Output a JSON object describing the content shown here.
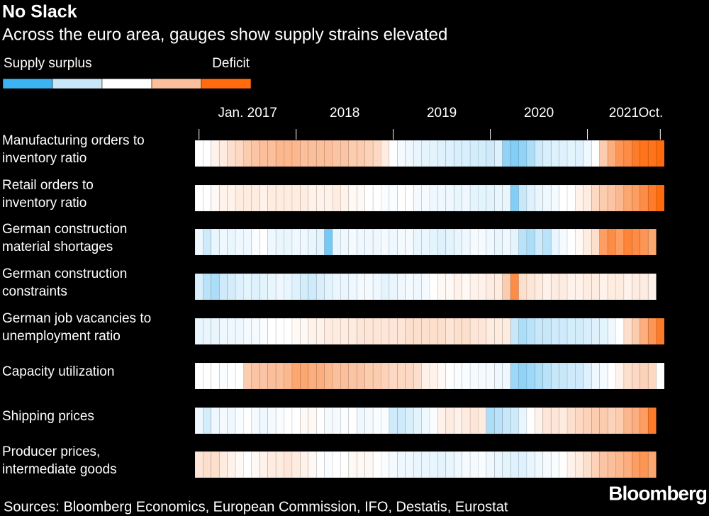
{
  "chart_data": {
    "type": "heatmap",
    "title": "No Slack",
    "subtitle": "Across the euro area, gauges show supply strains elevated",
    "legend_labels": [
      "Supply surplus",
      "Deficit"
    ],
    "colors": [
      "#3db4f2",
      "#c8e8fa",
      "#ffffff",
      "#fbbf9b",
      "#ff6b0d"
    ],
    "zlim": [
      -2,
      2
    ],
    "xticks": [
      {
        "value": 0,
        "label": "Jan. 2017"
      },
      {
        "value": 12,
        "label": "2018"
      },
      {
        "value": 24,
        "label": "2019"
      },
      {
        "value": 36,
        "label": "2020"
      },
      {
        "value": 48,
        "label": "2021"
      },
      {
        "value": 57,
        "label": "Oct."
      }
    ],
    "series": [
      {
        "name": "Manufacturing orders to\ninventory ratio",
        "values": [
          0,
          0,
          0.2,
          0.3,
          0.5,
          0.6,
          0.8,
          0.9,
          1,
          1,
          1.1,
          1.1,
          1.1,
          1,
          1,
          1,
          1,
          0.9,
          0.9,
          0.8,
          0.8,
          0.7,
          0.6,
          0.3,
          0,
          -0.2,
          -0.3,
          -0.4,
          -0.5,
          -0.5,
          -0.6,
          -0.6,
          -0.7,
          -0.7,
          -0.8,
          -0.8,
          -0.9,
          -0.6,
          -1.4,
          -1.5,
          -1.4,
          -1.2,
          -0.9,
          -0.7,
          -0.6,
          -0.6,
          -0.5,
          -0.6,
          -0.3,
          0,
          0.8,
          1.2,
          1.5,
          1.6,
          1.8,
          1.9,
          1.9,
          2
        ]
      },
      {
        "name": "Retail orders to\ninventory ratio",
        "values": [
          0,
          0,
          0.1,
          0.2,
          0.2,
          0.3,
          0.3,
          0.3,
          0.2,
          0.3,
          0.3,
          0.3,
          0.3,
          0.3,
          0.2,
          0.2,
          0.2,
          0.3,
          0.2,
          0.1,
          0.1,
          0,
          0,
          -0.1,
          -0.1,
          0,
          0,
          -0.2,
          -0.2,
          -0.3,
          -0.3,
          -0.3,
          -0.4,
          -0.3,
          -0.5,
          -0.5,
          -0.5,
          -0.4,
          -0.4,
          -1.5,
          -1,
          -0.6,
          -0.4,
          -0.3,
          -0.2,
          0,
          0,
          0.2,
          0.3,
          0.6,
          0.8,
          0.9,
          1.1,
          1.3,
          1.4,
          1.6,
          1.8,
          2
        ]
      },
      {
        "name": "German construction\nmaterial shortages",
        "values": [
          -0.3,
          -0.9,
          -0.4,
          -0.3,
          -0.4,
          -0.3,
          -0.3,
          -0.1,
          0,
          -0.3,
          -0.4,
          -0.4,
          -0.3,
          -0.3,
          -0.4,
          -0.5,
          -1.6,
          -0.4,
          -0.3,
          -0.2,
          -0.3,
          -0.3,
          -0.3,
          -0.2,
          -0.3,
          -0.2,
          -0.2,
          -0.4,
          -0.4,
          -0.5,
          -0.6,
          -0.5,
          -0.4,
          -0.3,
          -0.2,
          -0.2,
          -0.3,
          -0.4,
          -0.3,
          -0.5,
          -1.1,
          -1.2,
          -0.9,
          -1.1,
          -0.4,
          -0.2,
          0,
          0.1,
          0.3,
          0.5,
          1.4,
          1.6,
          1.4,
          1.7,
          1.6,
          1.5,
          1.3
        ]
      },
      {
        "name": "German construction\nconstraints",
        "values": [
          -0.7,
          -1.1,
          -1.2,
          -0.9,
          -0.8,
          -0.6,
          -0.5,
          -0.6,
          -0.5,
          -0.4,
          -0.3,
          -0.4,
          -0.6,
          -0.8,
          -0.9,
          -0.7,
          -0.5,
          -0.4,
          -0.4,
          -0.3,
          -0.2,
          -0.2,
          -0.3,
          -0.5,
          -0.4,
          -0.3,
          -0.2,
          -0.3,
          -0.2,
          0,
          0.1,
          0.1,
          0.2,
          0.1,
          0.2,
          0.2,
          0.3,
          0.3,
          0.8,
          1.6,
          0.5,
          0.4,
          0.3,
          0.2,
          0.3,
          0.3,
          0.2,
          0.2,
          0.3,
          0.3,
          0.2,
          0.3,
          0.3,
          0.2,
          0.3,
          0.3,
          0.2
        ]
      },
      {
        "name": "German job vacancies to\nunemployment ratio",
        "values": [
          -0.4,
          -0.4,
          -0.4,
          -0.3,
          -0.3,
          -0.3,
          -0.2,
          -0.2,
          -0.1,
          0,
          0,
          0,
          0.1,
          0.1,
          0.2,
          0.2,
          0.3,
          0.3,
          0.3,
          0.3,
          0.4,
          0.4,
          0.4,
          0.4,
          0.4,
          0.4,
          0.5,
          0.5,
          0.5,
          0.5,
          0.5,
          0.4,
          0.5,
          0.5,
          0.4,
          0.4,
          0.3,
          0.3,
          0.3,
          -1,
          -1.2,
          -1.1,
          -1,
          -1,
          -0.9,
          -0.9,
          -0.8,
          -0.8,
          -0.7,
          -0.6,
          -0.5,
          -0.3,
          0,
          0.5,
          0.8,
          1.2,
          1.5,
          1.8
        ]
      },
      {
        "name": "Capacity utilization",
        "values": [
          0,
          0,
          0,
          -0.1,
          0,
          0,
          0.8,
          0.9,
          0.9,
          1,
          1,
          1.1,
          1.3,
          1.3,
          1.2,
          1.2,
          1.1,
          1,
          1,
          0.9,
          0.9,
          0.8,
          0.8,
          0.7,
          0.6,
          0.6,
          0.6,
          0.5,
          0.2,
          0.2,
          0.1,
          0,
          -0.1,
          -0.1,
          -0.2,
          -0.2,
          -0.2,
          -0.3,
          -0.3,
          -1.3,
          -1.4,
          -1.3,
          -1.2,
          -1.1,
          -1,
          -1,
          -0.9,
          -0.9,
          -0.6,
          -0.3,
          -0.2,
          0,
          0.2,
          0.5,
          0.6,
          0.7,
          0.6,
          0
        ]
      },
      {
        "name": "Shipping prices",
        "values": [
          -0.3,
          -0.8,
          -0.3,
          -0.2,
          -0.3,
          -0.1,
          0,
          -0.2,
          -0.3,
          -0.2,
          -0.1,
          0,
          0,
          0.1,
          0.1,
          0,
          -0.2,
          -0.2,
          -0.1,
          0,
          -0.3,
          -0.2,
          -0.1,
          -0.1,
          -0.9,
          -0.9,
          -0.7,
          -0.5,
          -0.3,
          -0.1,
          0.2,
          0.3,
          0.2,
          0.3,
          0.4,
          0.3,
          -1.2,
          -1.1,
          -1,
          -0.9,
          -0.4,
          0,
          0.2,
          0.4,
          0.4,
          0.3,
          0.5,
          0.6,
          0.7,
          0.8,
          0.8,
          0.7,
          0.8,
          1.1,
          1.2,
          1.4,
          1.8
        ]
      },
      {
        "name": "Producer prices,\nintermediate goods",
        "values": [
          0.4,
          0.5,
          0.5,
          0.3,
          0.2,
          0.1,
          0,
          0.1,
          0.2,
          0.3,
          0.3,
          0.4,
          0.3,
          0.2,
          0.1,
          0,
          -0.1,
          0,
          0,
          0.1,
          0.1,
          0.1,
          0,
          -0.1,
          -0.2,
          -0.3,
          -0.3,
          -0.4,
          -0.4,
          -0.4,
          -0.5,
          -0.4,
          -0.3,
          -0.2,
          -0.2,
          -0.1,
          -0.3,
          -0.4,
          -0.5,
          -0.6,
          -0.6,
          -0.4,
          -0.3,
          -0.2,
          -0.1,
          0,
          0.2,
          0.3,
          0.5,
          0.7,
          0.9,
          1,
          1.1,
          1.2,
          1.4,
          1.5,
          1.3
        ]
      }
    ],
    "source": "Sources: Bloomberg Economics, European Commission, IFO, Destatis, Eurostat",
    "logo": "Bloomberg"
  }
}
